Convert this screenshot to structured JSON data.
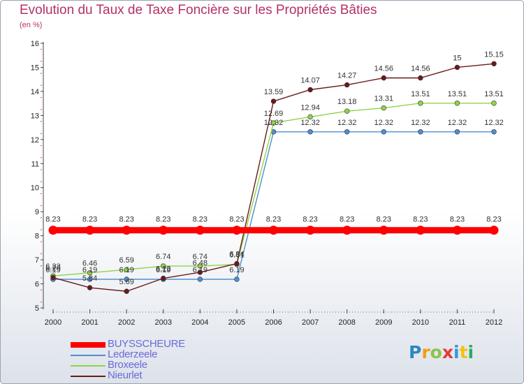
{
  "title": "Evolution du Taux de Taxe Foncière sur les Propriétés Bâties",
  "subtitle": "(en %)",
  "logo": {
    "letters": [
      "P",
      "r",
      "o",
      "x",
      "i",
      "t",
      "i"
    ],
    "colors": [
      "#2e86c1",
      "#f39c12",
      "#8bc34a",
      "#e53935",
      "#3498db",
      "#f1c40f",
      "#27ae60"
    ]
  },
  "chart_data": {
    "type": "line",
    "categories": [
      "2000",
      "2001",
      "2002",
      "2003",
      "2004",
      "2005",
      "2006",
      "2007",
      "2008",
      "2009",
      "2010",
      "2011",
      "2012"
    ],
    "ylim": [
      5,
      16
    ],
    "yticks": [
      "5",
      "6",
      "7",
      "8",
      "9",
      "10",
      "11",
      "12",
      "13",
      "14",
      "15",
      "16"
    ],
    "series": [
      {
        "name": "BUYSSCHEURE",
        "color": "#ff0000",
        "values": [
          8.23,
          8.23,
          8.23,
          8.23,
          8.23,
          8.23,
          8.23,
          8.23,
          8.23,
          8.23,
          8.23,
          8.23,
          8.23
        ],
        "labels": [
          "8.23",
          "8.23",
          "8.23",
          "8.23",
          "8.23",
          "8.23",
          "8.23",
          "8.23",
          "8.23",
          "8.23",
          "8.23",
          "8.23",
          "8.23"
        ]
      },
      {
        "name": "Lederzeele",
        "color": "#4f8fce",
        "values": [
          6.19,
          6.19,
          6.19,
          6.19,
          6.19,
          6.19,
          12.32,
          12.32,
          12.32,
          12.32,
          12.32,
          12.32,
          12.32
        ],
        "labels": [
          "6.19",
          "6.19",
          "6.19",
          "6.19",
          "6.19",
          "6.19",
          "12.32",
          "12.32",
          "12.32",
          "12.32",
          "12.32",
          "12.32",
          "12.32"
        ]
      },
      {
        "name": "Broxeele",
        "color": "#8fd448",
        "values": [
          6.33,
          6.46,
          6.59,
          6.74,
          6.74,
          6.81,
          12.69,
          12.94,
          13.18,
          13.31,
          13.51,
          13.51,
          13.51
        ],
        "labels": [
          "6.33",
          "6.46",
          "6.59",
          "6.74",
          "6.74",
          "6.81",
          "12.69",
          "12.94",
          "13.18",
          "13.31",
          "13.51",
          "13.51",
          "13.51"
        ]
      },
      {
        "name": "Nieurlet",
        "color": "#6b1a1a",
        "values": [
          6.26,
          5.84,
          5.69,
          6.23,
          6.48,
          6.84,
          13.59,
          14.07,
          14.27,
          14.56,
          14.56,
          15,
          15.15
        ],
        "labels": [
          "6.26",
          "5.84",
          "5.69",
          "6.23",
          "6.48",
          "6.84",
          "13.59",
          "14.07",
          "14.27",
          "14.56",
          "14.56",
          "15",
          "15.15"
        ]
      }
    ]
  }
}
